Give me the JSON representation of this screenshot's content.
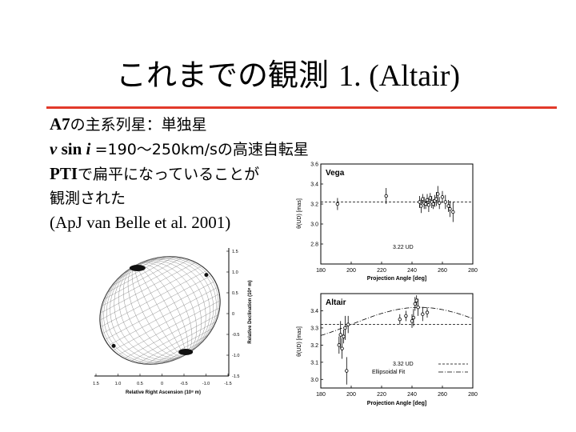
{
  "slide": {
    "title_main": "これまでの観測",
    "title_rest": "1. (Altair)",
    "line1_bold": "A7",
    "line1_rest": "の主系列星：単独星",
    "line2_v": "v",
    "line2_sin": "sin",
    "line2_i": "i",
    "line2_rest": "=190〜250km/sの高速自転星",
    "line3_bold": "PTI",
    "line3_rest": "で扁平になっていることが",
    "line4": "観測された",
    "line5": "(ApJ van Belle et al. 2001)"
  },
  "chart_data": [
    {
      "type": "scatter",
      "title": "Vega",
      "xlabel": "Projection Angle [deg]",
      "ylabel": "θ(UD) [mas]",
      "xlim": [
        180,
        280
      ],
      "ylim": [
        2.6,
        3.6
      ],
      "xticks": [
        "180",
        "200",
        "220",
        "240",
        "260",
        "280"
      ],
      "yticks": [
        "2.8",
        "3.0",
        "3.2",
        "3.4",
        "3.6"
      ],
      "ud_line": 3.22,
      "ud_label": "3.22 UD",
      "x": [
        191,
        223,
        245,
        246,
        247,
        248,
        249,
        250,
        251,
        252,
        253,
        254,
        255,
        256,
        257,
        258,
        260,
        262,
        264,
        265,
        267
      ],
      "y": [
        3.2,
        3.28,
        3.22,
        3.18,
        3.25,
        3.21,
        3.2,
        3.24,
        3.19,
        3.26,
        3.22,
        3.2,
        3.23,
        3.25,
        3.3,
        3.21,
        3.27,
        3.22,
        3.18,
        3.15,
        3.12
      ],
      "err": [
        0.06,
        0.08,
        0.06,
        0.07,
        0.05,
        0.06,
        0.05,
        0.06,
        0.07,
        0.05,
        0.06,
        0.05,
        0.06,
        0.07,
        0.08,
        0.06,
        0.06,
        0.07,
        0.06,
        0.08,
        0.1
      ]
    },
    {
      "type": "scatter",
      "title": "Altair",
      "xlabel": "Projection Angle [deg]",
      "ylabel": "θ(UD) [mas]",
      "xlim": [
        180,
        280
      ],
      "ylim": [
        2.95,
        3.5
      ],
      "xticks": [
        "180",
        "200",
        "220",
        "240",
        "260",
        "280"
      ],
      "yticks": [
        "3.0",
        "3.1",
        "3.2",
        "3.3",
        "3.4"
      ],
      "ud_line": 3.32,
      "legend": [
        "3.32 UD",
        "Ellipsoidal Fit"
      ],
      "fit_peak_x": 245,
      "fit_max": 3.42,
      "fit_min": 3.22,
      "x": [
        192,
        193,
        194,
        195,
        196,
        197,
        198,
        232,
        236,
        240,
        241,
        242,
        243,
        244,
        247,
        250
      ],
      "y": [
        3.2,
        3.26,
        3.18,
        3.25,
        3.3,
        3.05,
        3.32,
        3.35,
        3.37,
        3.34,
        3.36,
        3.44,
        3.46,
        3.42,
        3.38,
        3.39
      ],
      "err": [
        0.05,
        0.08,
        0.06,
        0.04,
        0.07,
        0.08,
        0.05,
        0.03,
        0.03,
        0.04,
        0.05,
        0.04,
        0.03,
        0.05,
        0.04,
        0.03
      ]
    },
    {
      "type": "diagram",
      "xlabel": "Relative Right Ascension (10⁸ m)",
      "ylabel": "Relative Declination (10⁸ m)",
      "xticks": [
        "1.5",
        "1.0",
        "0.5",
        "0",
        "-0.5",
        "-1.0",
        "-1.5"
      ],
      "yticks": [
        "1.5",
        "1.0",
        "0.5",
        "0",
        "-0.5",
        "-1.0",
        "-1.5"
      ]
    }
  ]
}
